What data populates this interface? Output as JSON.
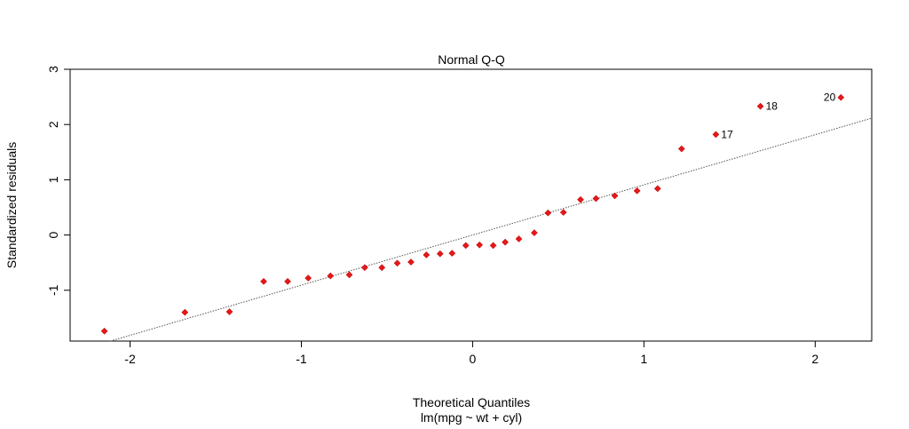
{
  "chart_data": {
    "type": "scatter",
    "title": "Normal Q-Q",
    "xlabel": "Theoretical Quantiles",
    "subtitle": "lm(mpg ~ wt + cyl)",
    "ylabel": "Standardized residuals",
    "xlim": [
      -2.35,
      2.33
    ],
    "ylim": [
      -1.92,
      3.0
    ],
    "xticks": [
      "-2",
      "-1",
      "0",
      "1",
      "2"
    ],
    "xtick_values": [
      -2,
      -1,
      0,
      1,
      2
    ],
    "yticks": [
      "-1",
      "0",
      "1",
      "2",
      "3"
    ],
    "ytick_values": [
      -1,
      0,
      1,
      2,
      3
    ],
    "grid": false,
    "legend": "none",
    "point_color": "#e31a1c",
    "point_outline": "#cc0000",
    "reference_line": {
      "slope": 0.908,
      "intercept": 0.0,
      "style": "dotted",
      "color": "#555555"
    },
    "points": [
      {
        "x": -2.15,
        "y": -1.74
      },
      {
        "x": -1.68,
        "y": -1.4
      },
      {
        "x": -1.42,
        "y": -1.39
      },
      {
        "x": -1.22,
        "y": -0.84
      },
      {
        "x": -1.08,
        "y": -0.84
      },
      {
        "x": -0.96,
        "y": -0.78
      },
      {
        "x": -0.83,
        "y": -0.74
      },
      {
        "x": -0.72,
        "y": -0.72
      },
      {
        "x": -0.63,
        "y": -0.59
      },
      {
        "x": -0.53,
        "y": -0.59
      },
      {
        "x": -0.44,
        "y": -0.51
      },
      {
        "x": -0.36,
        "y": -0.49
      },
      {
        "x": -0.27,
        "y": -0.36
      },
      {
        "x": -0.19,
        "y": -0.34
      },
      {
        "x": -0.12,
        "y": -0.33
      },
      {
        "x": -0.04,
        "y": -0.19
      },
      {
        "x": 0.04,
        "y": -0.18
      },
      {
        "x": 0.12,
        "y": -0.19
      },
      {
        "x": 0.19,
        "y": -0.13
      },
      {
        "x": 0.27,
        "y": -0.07
      },
      {
        "x": 0.36,
        "y": 0.04
      },
      {
        "x": 0.44,
        "y": 0.4
      },
      {
        "x": 0.53,
        "y": 0.41
      },
      {
        "x": 0.63,
        "y": 0.64
      },
      {
        "x": 0.72,
        "y": 0.66
      },
      {
        "x": 0.83,
        "y": 0.71
      },
      {
        "x": 0.96,
        "y": 0.8
      },
      {
        "x": 1.08,
        "y": 0.84
      },
      {
        "x": 1.22,
        "y": 1.56
      },
      {
        "x": 1.42,
        "y": 1.82,
        "label": "17"
      },
      {
        "x": 1.68,
        "y": 2.33,
        "label": "18"
      },
      {
        "x": 2.15,
        "y": 2.49,
        "label": "20"
      }
    ]
  }
}
